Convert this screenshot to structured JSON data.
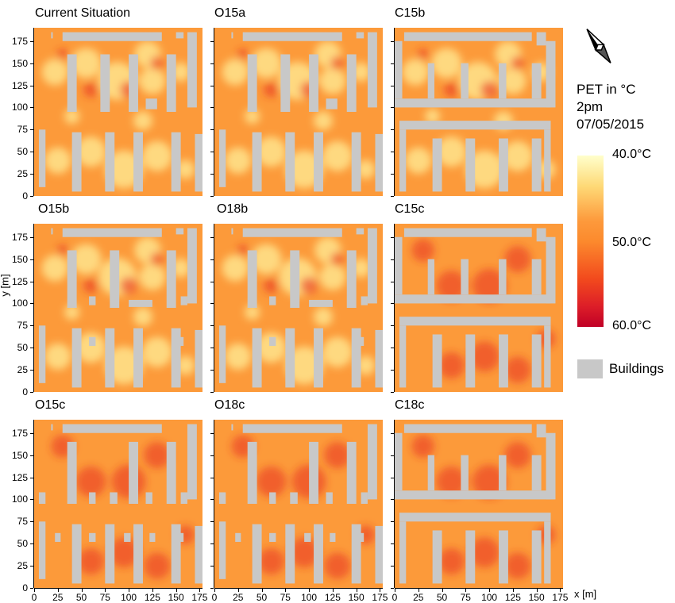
{
  "panels": [
    {
      "title": "Current Situation",
      "layout": "open-a",
      "heat": "low"
    },
    {
      "title": "O15a",
      "layout": "open-a",
      "heat": "low"
    },
    {
      "title": "C15b",
      "layout": "closed",
      "heat": "low"
    },
    {
      "title": "O15b",
      "layout": "open-b",
      "heat": "low"
    },
    {
      "title": "O18b",
      "layout": "open-b",
      "heat": "low"
    },
    {
      "title": "C15c",
      "layout": "closed",
      "heat": "high"
    },
    {
      "title": "O15c",
      "layout": "open-c",
      "heat": "high"
    },
    {
      "title": "O18c",
      "layout": "open-c",
      "heat": "high"
    },
    {
      "title": "C18c",
      "layout": "closed",
      "heat": "high"
    }
  ],
  "axes": {
    "x_label": "x [m]",
    "y_label": "y [m]",
    "x_ticks": [
      "0",
      "25",
      "50",
      "75",
      "100",
      "125",
      "150",
      "175"
    ],
    "y_ticks": [
      "175",
      "150",
      "125",
      "100",
      "75",
      "50",
      "25",
      "0"
    ],
    "x_range": [
      0,
      178
    ],
    "y_range": [
      0,
      190
    ]
  },
  "legend": {
    "title_line1": "PET in °C",
    "title_line2": "2pm",
    "title_line3": "07/05/2015",
    "colorbar_max": "40.0°C",
    "colorbar_mid": "50.0°C",
    "colorbar_min": "60.0°C",
    "buildings_label": "Buildings"
  },
  "colors": {
    "base": "#fc9a3a",
    "cool": "#fed980",
    "hot": "#e8321e",
    "building": "#c8c8c8"
  }
}
